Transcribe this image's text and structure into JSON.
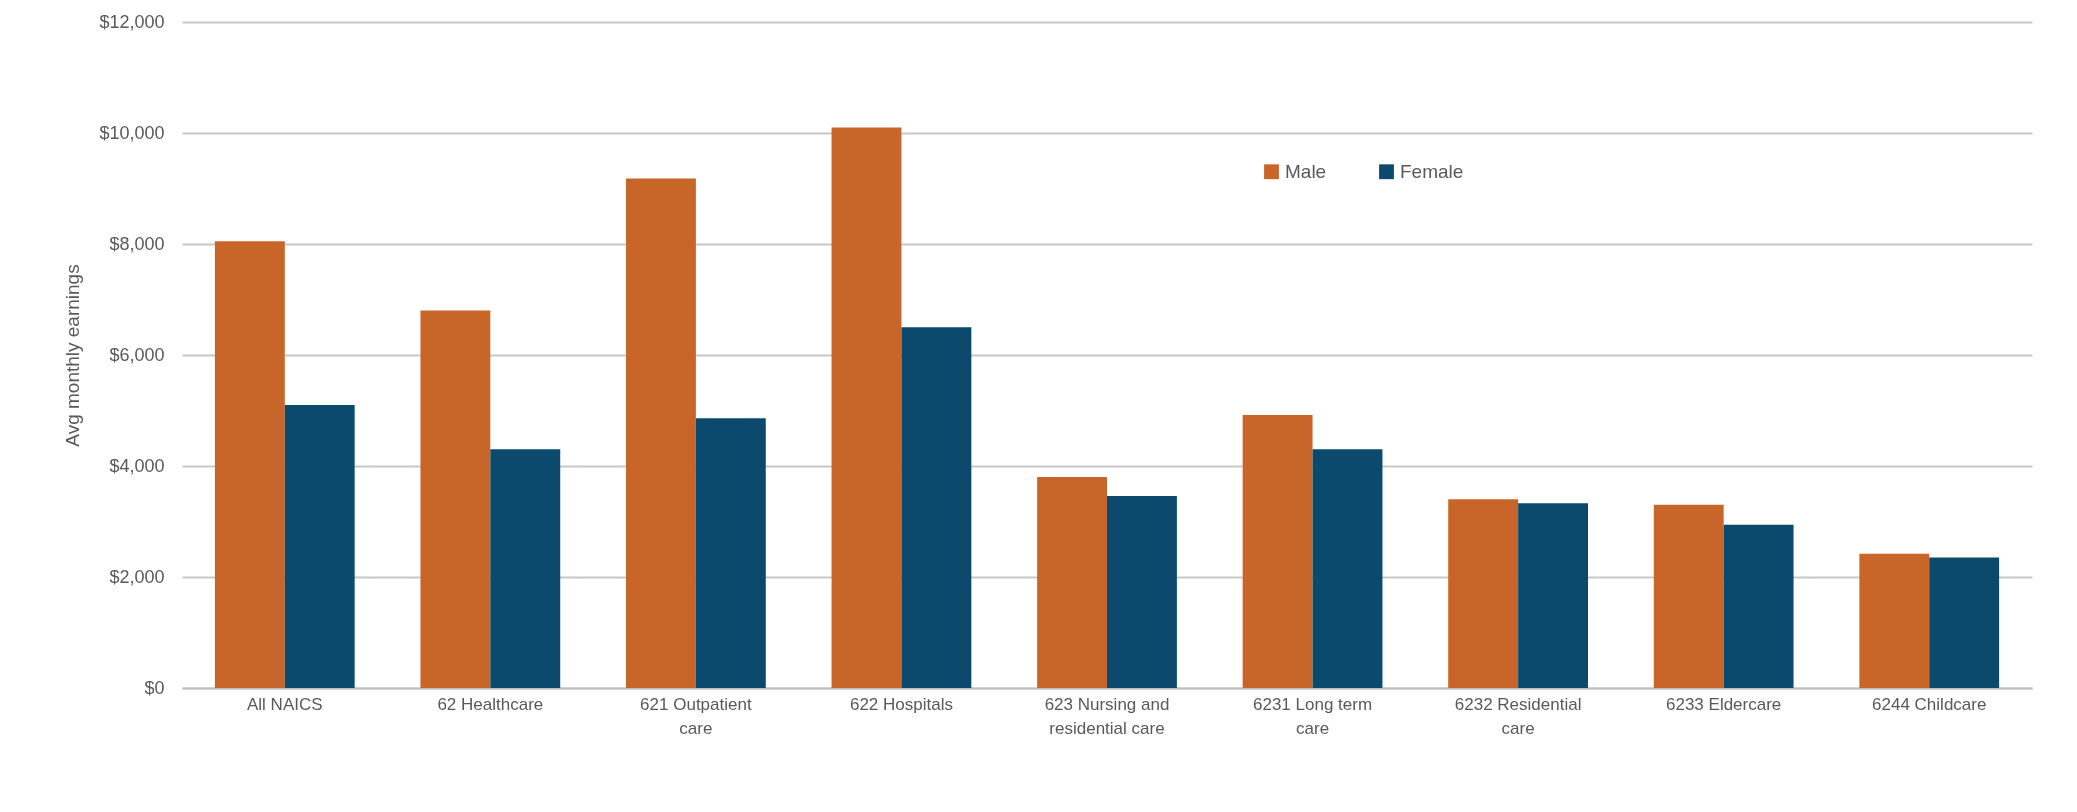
{
  "chart_data": {
    "type": "bar",
    "ylabel": "Avg monthly earnings",
    "categories": [
      "All NAICS",
      "62 Healthcare",
      "621 Outpatient care",
      "622 Hospitals",
      "623 Nursing and residential care",
      "6231 Long term care",
      "6232 Residential care",
      "6233 Eldercare",
      "6244 Childcare"
    ],
    "series": [
      {
        "name": "Male",
        "color": "#c8662a",
        "values": [
          8050,
          6800,
          9180,
          10100,
          3800,
          4920,
          3400,
          3300,
          2420
        ]
      },
      {
        "name": "Female",
        "color": "#0b4a6c",
        "values": [
          5100,
          4300,
          4860,
          6500,
          3460,
          4300,
          3330,
          2940,
          2350
        ]
      }
    ],
    "ylim": [
      0,
      12000
    ],
    "yticks": [
      {
        "value": 0,
        "label": "$0"
      },
      {
        "value": 2000,
        "label": "$2,000"
      },
      {
        "value": 4000,
        "label": "$4,000"
      },
      {
        "value": 6000,
        "label": "$6,000"
      },
      {
        "value": 8000,
        "label": "$8,000"
      },
      {
        "value": 10000,
        "label": "$10,000"
      },
      {
        "value": 12000,
        "label": "$12,000"
      }
    ],
    "grid": "y",
    "legend": "top right"
  }
}
